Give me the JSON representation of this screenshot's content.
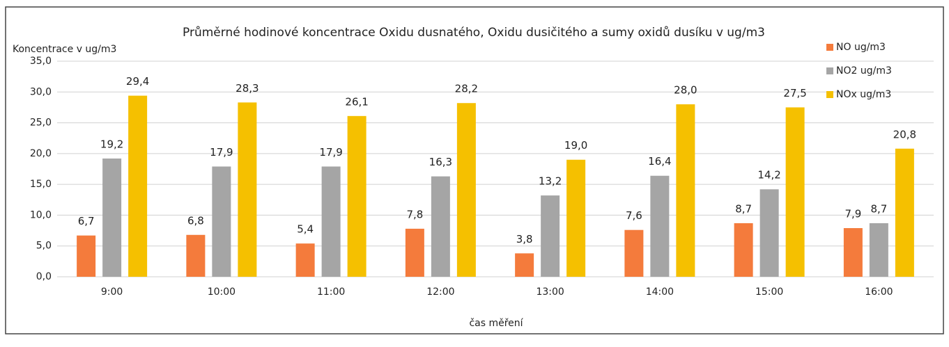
{
  "chart_data": {
    "type": "bar",
    "title": "Průměrné hodinové koncentrace Oxidu dusnatého, Oxidu dusičitého a sumy oxidů dusíku v ug/m3",
    "y_label": "Koncentrace v ug/m3",
    "x_label": "čas měření",
    "categories": [
      "9:00",
      "10:00",
      "11:00",
      "12:00",
      "13:00",
      "14:00",
      "15:00",
      "16:00"
    ],
    "series": [
      {
        "name": "NO ug/m3",
        "color": "#f47b3c",
        "values": [
          6.7,
          6.8,
          5.4,
          7.8,
          3.8,
          7.6,
          8.7,
          7.9
        ],
        "value_labels": [
          "6,7",
          "6,8",
          "5,4",
          "7,8",
          "3,8",
          "7,6",
          "8,7",
          "7,9"
        ]
      },
      {
        "name": "NO2 ug/m3",
        "color": "#a5a5a5",
        "values": [
          19.2,
          17.9,
          17.9,
          16.3,
          13.2,
          16.4,
          14.2,
          8.7
        ],
        "value_labels": [
          "19,2",
          "17,9",
          "17,9",
          "16,3",
          "13,2",
          "16,4",
          "14,2",
          "8,7"
        ]
      },
      {
        "name": "NOx ug/m3",
        "color": "#f5c000",
        "values": [
          29.4,
          28.3,
          26.1,
          28.2,
          19.0,
          28.0,
          27.5,
          20.8
        ],
        "value_labels": [
          "29,4",
          "28,3",
          "26,1",
          "28,2",
          "19,0",
          "28,0",
          "27,5",
          "20,8"
        ]
      }
    ],
    "ylim": [
      0,
      35
    ],
    "yticks": [
      {
        "value": 0,
        "label": "0,0"
      },
      {
        "value": 5,
        "label": "5,0"
      },
      {
        "value": 10,
        "label": "10,0"
      },
      {
        "value": 15,
        "label": "15,0"
      },
      {
        "value": 20,
        "label": "20,0"
      },
      {
        "value": 25,
        "label": "25,0"
      },
      {
        "value": 30,
        "label": "30,0"
      },
      {
        "value": 35,
        "label": "35,0"
      }
    ],
    "grid": true,
    "legend": "right"
  }
}
